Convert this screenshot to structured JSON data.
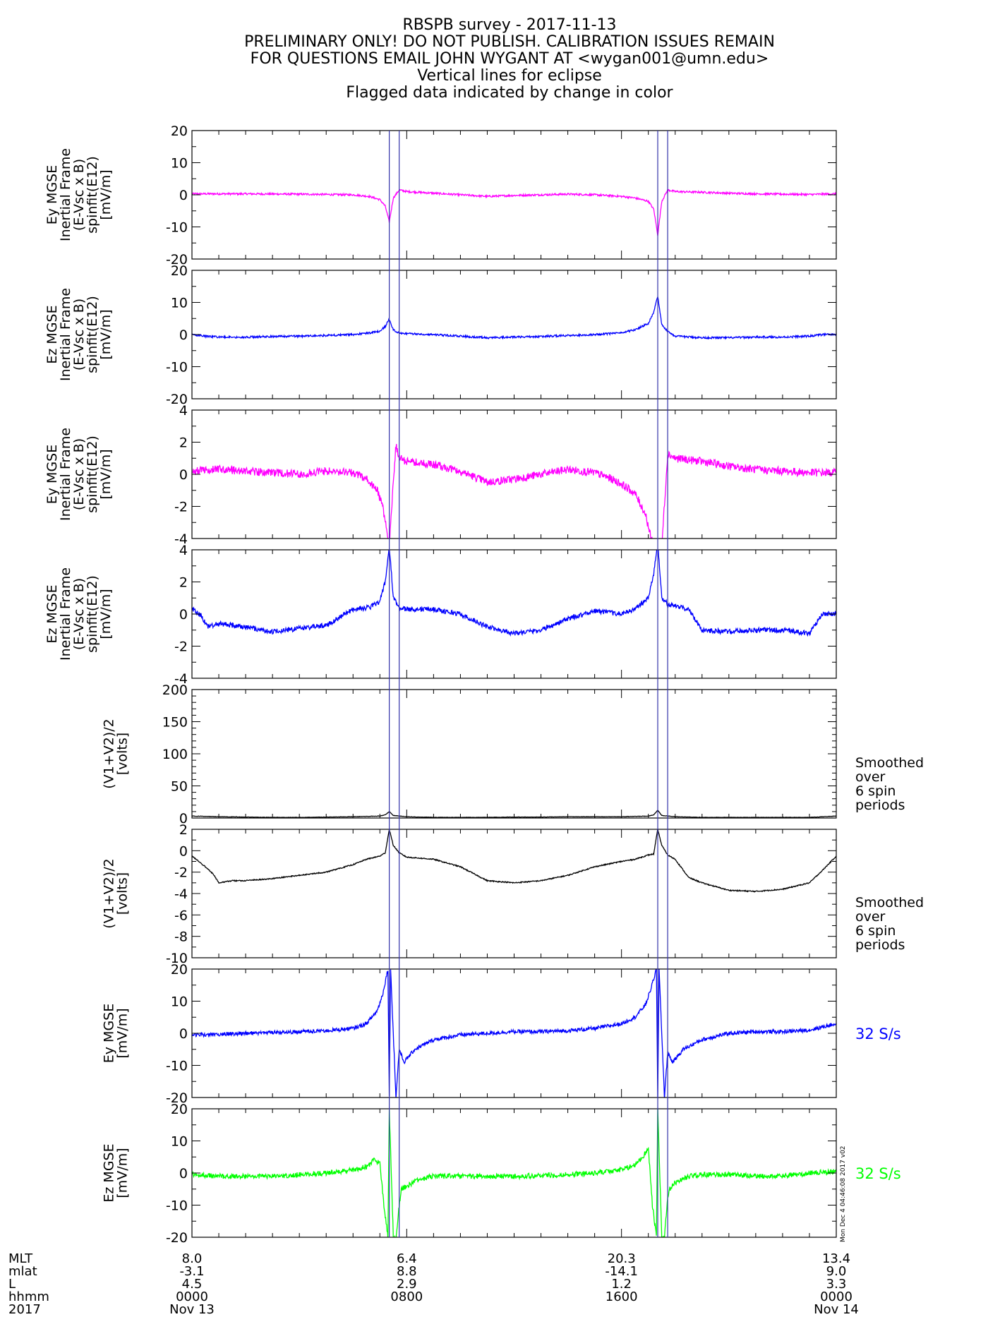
{
  "header": {
    "title": "RBSPB survey - 2017-11-13",
    "lines": [
      "PRELIMINARY ONLY! DO NOT PUBLISH. CALIBRATION ISSUES REMAIN",
      "FOR QUESTIONS EMAIL JOHN WYGANT AT <wygan001@umn.edu>",
      "Vertical lines for eclipse",
      "Flagged data indicated by change in color"
    ]
  },
  "colors": {
    "magenta": "#ff00ff",
    "blue": "#0000ff",
    "black": "#000000",
    "green": "#00ff00",
    "eclipse": "#3333aa"
  },
  "eclipse_lines_hours": [
    7.35,
    7.72,
    17.35,
    17.72
  ],
  "timestamp_note": "Mon Dec  4 04:46:08 2017 v02",
  "chart_data": [
    {
      "type": "line",
      "name": "ey-spinfit-panel",
      "color": "#ff00ff",
      "ylabel": [
        "Ey MGSE",
        "Inertial Frame",
        "(E-Vsc x B)",
        "spinfit(E12)",
        "[mV/m]"
      ],
      "ylim": [
        -20,
        20
      ],
      "yticks": [
        -20,
        -10,
        0,
        10,
        20
      ],
      "minor": 2,
      "xlim": [
        0,
        24
      ],
      "series": [
        {
          "x": [
            0,
            2,
            4,
            5,
            6,
            6.6,
            7,
            7.2,
            7.35,
            7.5,
            7.72,
            8,
            9,
            10,
            11,
            12,
            13,
            14,
            15,
            16,
            16.5,
            17,
            17.2,
            17.35,
            17.5,
            17.72,
            18,
            19,
            20,
            21,
            22,
            23,
            24
          ],
          "y": [
            0.3,
            0.3,
            0.2,
            0.1,
            0,
            -0.5,
            -1.5,
            -3.5,
            -8.5,
            -1,
            1.5,
            1,
            0.5,
            0,
            -0.5,
            -0.2,
            0,
            0.2,
            0,
            -0.5,
            -1,
            -2,
            -4.5,
            -12.5,
            -2,
            1.5,
            1,
            0.8,
            0.5,
            0.3,
            0.2,
            0.1,
            0.3
          ],
          "noise": 0.3
        }
      ],
      "right_label": []
    },
    {
      "type": "line",
      "name": "ez-spinfit-panel",
      "color": "#0000ff",
      "ylabel": [
        "Ez MGSE",
        "Inertial Frame",
        "(E-Vsc x B)",
        "spinfit(E12)",
        "[mV/m]"
      ],
      "ylim": [
        -20,
        20
      ],
      "yticks": [
        -20,
        -10,
        0,
        10,
        20
      ],
      "minor": 2,
      "xlim": [
        0,
        24
      ],
      "series": [
        {
          "x": [
            0,
            0.5,
            1,
            2,
            3,
            4,
            5,
            6,
            6.6,
            7,
            7.2,
            7.35,
            7.5,
            7.72,
            8,
            9,
            10,
            11,
            12,
            13,
            14,
            15,
            16,
            16.5,
            17,
            17.2,
            17.35,
            17.5,
            17.72,
            18,
            19,
            20,
            21,
            22,
            23,
            23.5,
            24
          ],
          "y": [
            0,
            -0.5,
            -0.8,
            -0.8,
            -0.6,
            -0.5,
            -0.3,
            0,
            0.5,
            1,
            2.5,
            4.8,
            1.5,
            0.5,
            0.3,
            0,
            -0.5,
            -1,
            -0.8,
            -0.6,
            -0.3,
            0,
            0.5,
            1.5,
            3.5,
            7,
            12,
            3,
            1,
            -0.5,
            -1,
            -1,
            -0.8,
            -0.8,
            -0.5,
            0,
            0
          ],
          "noise": 0.3
        }
      ],
      "right_label": []
    },
    {
      "type": "line",
      "name": "ey-spinfit-zoom-panel",
      "color": "#ff00ff",
      "ylabel": [
        "Ey MGSE",
        "Inertial Frame",
        "(E-Vsc x B)",
        "spinfit(E12)",
        "[mV/m]"
      ],
      "ylim": [
        -4,
        4
      ],
      "yticks": [
        -4,
        -2,
        0,
        2,
        4
      ],
      "minor": 2,
      "xlim": [
        0,
        24
      ],
      "series": [
        {
          "x": [
            0,
            1,
            2,
            3,
            4,
            5,
            6,
            6.5,
            6.9,
            7.1,
            7.25,
            7.35,
            7.5,
            7.6,
            7.72,
            8,
            9,
            10,
            11,
            12,
            13,
            14,
            15,
            15.5,
            16,
            16.5,
            16.9,
            17.1,
            17.3,
            17.5,
            17.72,
            18,
            19,
            20,
            21,
            22,
            23,
            24
          ],
          "y": [
            0.2,
            0.3,
            0.2,
            0.1,
            0,
            0.2,
            0.1,
            -0.3,
            -1,
            -2,
            -3.5,
            -4.5,
            -0.5,
            1.8,
            1,
            0.8,
            0.6,
            0.2,
            -0.5,
            -0.3,
            0,
            0.3,
            0.1,
            -0.2,
            -0.6,
            -1.2,
            -2.5,
            -4,
            -4.5,
            -4.5,
            1.3,
            1,
            0.8,
            0.5,
            0.3,
            0.2,
            0.1,
            0.1
          ],
          "noise": 0.25
        }
      ],
      "right_label": []
    },
    {
      "type": "line",
      "name": "ez-spinfit-zoom-panel",
      "color": "#0000ff",
      "ylabel": [
        "Ez MGSE",
        "Inertial Frame",
        "(E-Vsc x B)",
        "spinfit(E12)",
        "[mV/m]"
      ],
      "ylim": [
        -4,
        4
      ],
      "yticks": [
        -4,
        -2,
        0,
        2,
        4
      ],
      "minor": 2,
      "xlim": [
        0,
        24
      ],
      "series": [
        {
          "x": [
            0,
            0.3,
            0.6,
            1,
            2,
            3,
            4,
            5,
            6,
            6.6,
            7,
            7.2,
            7.35,
            7.5,
            7.72,
            8,
            9,
            10,
            11,
            12,
            13,
            14,
            15,
            16,
            16.5,
            17,
            17.2,
            17.35,
            17.5,
            17.72,
            18,
            18.5,
            19,
            20,
            21,
            22,
            22.5,
            23,
            23.5,
            24
          ],
          "y": [
            0.3,
            0,
            -0.8,
            -0.6,
            -0.8,
            -1.1,
            -0.9,
            -0.7,
            0.3,
            0.4,
            0.8,
            2,
            4.2,
            1,
            0.4,
            0.3,
            0.3,
            0,
            -0.8,
            -1.2,
            -1,
            -0.3,
            0.2,
            0,
            0.3,
            1,
            2.5,
            4.5,
            1,
            0.6,
            0.5,
            0.3,
            -1,
            -1.1,
            -1,
            -1,
            -1.1,
            -1.2,
            0,
            0
          ],
          "noise": 0.15
        }
      ],
      "right_label": []
    },
    {
      "type": "line",
      "name": "potential-panel",
      "color": "#000000",
      "ylabel": [
        "(V1+V2)/2",
        "[volts]"
      ],
      "ylim": [
        0,
        200
      ],
      "yticks": [
        0,
        50,
        100,
        150,
        200
      ],
      "minor": 5,
      "xlim": [
        0,
        24
      ],
      "series": [
        {
          "x": [
            0,
            1,
            2,
            3,
            4,
            5,
            6,
            7,
            7.2,
            7.35,
            7.5,
            7.72,
            8,
            9,
            10,
            11,
            12,
            13,
            14,
            15,
            16,
            17,
            17.2,
            17.35,
            17.5,
            17.72,
            18,
            19,
            20,
            21,
            22,
            23,
            24
          ],
          "y": [
            3,
            2,
            1.5,
            1,
            1,
            1.5,
            2,
            3,
            5,
            10,
            4,
            3,
            2,
            1,
            1,
            1,
            1.5,
            1.5,
            2,
            2,
            2,
            3,
            5,
            12,
            4,
            3,
            2,
            1,
            1,
            1,
            1,
            1,
            3
          ],
          "noise": 0.3
        }
      ],
      "right_label": [
        "Smoothed",
        "over",
        "6 spin",
        "periods"
      ]
    },
    {
      "type": "line",
      "name": "potential-zoom-panel",
      "color": "#000000",
      "ylabel": [
        "(V1+V2)/2",
        "[volts]"
      ],
      "ylim": [
        -10,
        2
      ],
      "yticks": [
        -10,
        -8,
        -6,
        -4,
        -2,
        0,
        2
      ],
      "minor": 2,
      "xlim": [
        0,
        24
      ],
      "series": [
        {
          "x": [
            0,
            0.5,
            0.8,
            1,
            1.5,
            2,
            3,
            4,
            5,
            6,
            6.5,
            7,
            7.2,
            7.35,
            7.5,
            7.72,
            8,
            9,
            10,
            11,
            12,
            13,
            14,
            15,
            16,
            16.5,
            17,
            17.2,
            17.35,
            17.5,
            17.72,
            18,
            18.5,
            19,
            20,
            21,
            22,
            23,
            23.5,
            24
          ],
          "y": [
            -0.5,
            -1.5,
            -2.2,
            -3,
            -2.8,
            -2.8,
            -2.6,
            -2.3,
            -2,
            -1.3,
            -0.8,
            -0.5,
            -0.2,
            2,
            0.5,
            -0.2,
            -0.6,
            -0.8,
            -1.5,
            -2.8,
            -3,
            -2.8,
            -2.3,
            -1.5,
            -1,
            -0.8,
            -0.4,
            -0.3,
            2,
            0.5,
            -0.4,
            -0.8,
            -2.5,
            -3,
            -3.7,
            -3.8,
            -3.6,
            -3,
            -1.8,
            -0.5
          ],
          "noise": 0.05
        }
      ],
      "right_label": [
        "Smoothed",
        "over",
        "6 spin",
        "periods"
      ]
    },
    {
      "type": "line",
      "name": "ey-32sps-panel",
      "color": "#0000ff",
      "ylabel": [
        "Ey MGSE",
        "[mV/m]"
      ],
      "ylim": [
        -20,
        20
      ],
      "yticks": [
        -20,
        -10,
        0,
        10,
        20
      ],
      "minor": 2,
      "xlim": [
        0,
        24
      ],
      "series": [
        {
          "x": [
            0,
            2,
            4,
            5,
            6,
            6.5,
            6.9,
            7.1,
            7.3,
            7.35,
            7.4,
            7.6,
            7.72,
            7.9,
            8.3,
            9,
            10,
            11,
            12,
            13,
            14,
            15,
            16,
            16.5,
            16.9,
            17.1,
            17.3,
            17.35,
            17.4,
            17.6,
            17.72,
            17.9,
            18.3,
            19,
            20,
            21,
            22,
            23,
            24
          ],
          "y": [
            -0.5,
            0,
            0.5,
            0.8,
            1.5,
            3,
            7,
            12,
            20,
            -20,
            20,
            -20,
            -5,
            -9,
            -5,
            -2,
            -0.5,
            0,
            0.5,
            0.5,
            0.8,
            1.5,
            3,
            5,
            9,
            14,
            20,
            -20,
            20,
            -20,
            -6,
            -9,
            -5,
            -2,
            0,
            0.5,
            0.5,
            1,
            3
          ],
          "noise": 0.6
        }
      ],
      "right_label": [
        "32 S/s"
      ]
    },
    {
      "type": "line",
      "name": "ez-32sps-panel",
      "color": "#00ff00",
      "ylabel": [
        "Ez MGSE",
        "[mV/m]"
      ],
      "ylim": [
        -20,
        20
      ],
      "yticks": [
        -20,
        -10,
        0,
        10,
        20
      ],
      "minor": 2,
      "xlim": [
        0,
        24
      ],
      "series": [
        {
          "x": [
            0,
            1,
            2,
            3,
            4,
            5,
            6,
            6.5,
            6.8,
            7,
            7.15,
            7.3,
            7.35,
            7.5,
            7.6,
            7.72,
            7.8,
            8,
            8.5,
            9,
            10,
            11,
            12,
            13,
            14,
            15,
            16,
            16.5,
            16.8,
            17,
            17.15,
            17.3,
            17.35,
            17.5,
            17.6,
            17.72,
            17.8,
            18,
            18.5,
            19,
            20,
            21,
            22,
            23,
            24
          ],
          "y": [
            -0.5,
            -1,
            -1,
            -1,
            -0.5,
            0,
            1,
            2,
            4,
            3,
            -10,
            -20,
            20,
            -20,
            -20,
            -10,
            -5,
            -4,
            -2,
            -1,
            -1,
            -1,
            -1,
            -0.8,
            -0.5,
            0,
            1,
            2.5,
            5,
            8,
            -10,
            -20,
            20,
            -20,
            -20,
            -8,
            -5,
            -3,
            -1,
            -0.5,
            -0.5,
            -1,
            -1,
            0,
            0.5
          ],
          "noise": 0.8
        }
      ],
      "right_label": [
        "32 S/s"
      ]
    }
  ],
  "footer": {
    "row_labels": [
      "MLT",
      "mlat",
      "L",
      "hhmm",
      "2017"
    ],
    "columns": [
      {
        "hour": 0,
        "values": [
          "8.0",
          "-3.1",
          "4.5",
          "0000",
          "Nov 13"
        ]
      },
      {
        "hour": 8,
        "values": [
          "6.4",
          "8.8",
          "2.9",
          "0800",
          ""
        ]
      },
      {
        "hour": 16,
        "values": [
          "20.3",
          "-14.1",
          "1.2",
          "1600",
          ""
        ]
      },
      {
        "hour": 24,
        "values": [
          "13.4",
          "9.0",
          "3.3",
          "0000",
          "Nov 14"
        ]
      }
    ]
  }
}
